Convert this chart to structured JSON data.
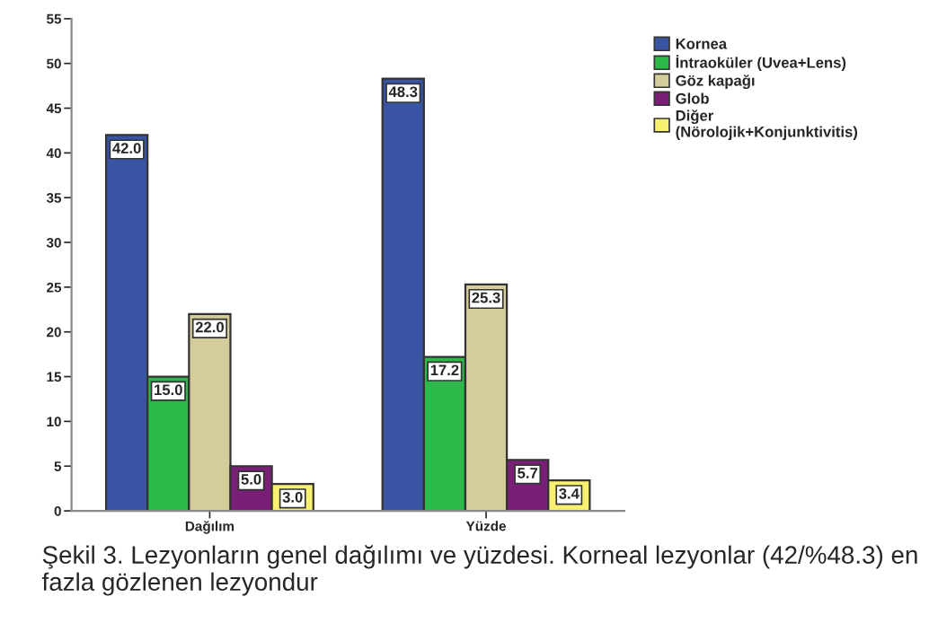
{
  "chart_data": {
    "type": "bar",
    "categories": [
      "Dağılım",
      "Yüzde"
    ],
    "series": [
      {
        "name": "Kornea",
        "color": "#3a54a4",
        "values": [
          42.0,
          48.3
        ],
        "value_labels": [
          "42.0",
          "48.3"
        ]
      },
      {
        "name": "İntraoküler (Uvea+Lens)",
        "color": "#2db84a",
        "values": [
          15.0,
          17.2
        ],
        "value_labels": [
          "15.0",
          "17.2"
        ]
      },
      {
        "name": "Göz kapağı",
        "color": "#d4cc9a",
        "values": [
          22.0,
          25.3
        ],
        "value_labels": [
          "22.0",
          "25.3"
        ]
      },
      {
        "name": "Glob",
        "color": "#7a1f78",
        "values": [
          5.0,
          5.7
        ],
        "value_labels": [
          "5.0",
          "5.7"
        ]
      },
      {
        "name": "Diğer\n(Nörolojik+Konjunktivitis)",
        "color": "#f8f070",
        "values": [
          3.0,
          3.4
        ],
        "value_labels": [
          "3.0",
          "3.4"
        ]
      }
    ],
    "ylim": [
      0,
      55
    ],
    "yticks": [
      0,
      5,
      10,
      15,
      20,
      25,
      30,
      35,
      40,
      45,
      50,
      55
    ],
    "legend": "top right",
    "annotations": [
      "Şekil 3. Lezyonların genel dağılımı ve yüzdesi. Korneal lezyonlar (42/%48.3) en fazla gözlenen lezyondur"
    ]
  }
}
